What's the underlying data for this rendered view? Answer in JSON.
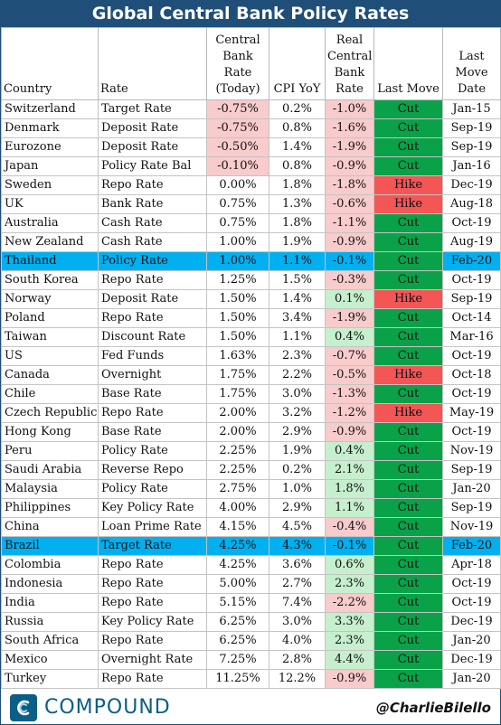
{
  "title": "Global Central Bank Policy Rates",
  "headers": {
    "country": "Country",
    "rate": "Rate",
    "cb_rate": "Central Bank Rate (Today)",
    "cpi": "CPI YoY",
    "real_rate": "Real Central Bank Rate",
    "last_move": "Last Move",
    "last_move_date": "Last Move Date"
  },
  "rows": [
    {
      "country": "Switzerland",
      "rate": "Target Rate",
      "cb": "-0.75%",
      "cpi": "0.2%",
      "real": "-1.0%",
      "move": "Cut",
      "date": "Jan-15"
    },
    {
      "country": "Denmark",
      "rate": "Deposit Rate",
      "cb": "-0.75%",
      "cpi": "0.8%",
      "real": "-1.6%",
      "move": "Cut",
      "date": "Sep-19"
    },
    {
      "country": "Eurozone",
      "rate": "Deposit Rate",
      "cb": "-0.50%",
      "cpi": "1.4%",
      "real": "-1.9%",
      "move": "Cut",
      "date": "Sep-19"
    },
    {
      "country": "Japan",
      "rate": "Policy Rate Bal",
      "cb": "-0.10%",
      "cpi": "0.8%",
      "real": "-0.9%",
      "move": "Cut",
      "date": "Jan-16"
    },
    {
      "country": "Sweden",
      "rate": "Repo Rate",
      "cb": "0.00%",
      "cpi": "1.8%",
      "real": "-1.8%",
      "move": "Hike",
      "date": "Dec-19"
    },
    {
      "country": "UK",
      "rate": "Bank Rate",
      "cb": "0.75%",
      "cpi": "1.3%",
      "real": "-0.6%",
      "move": "Hike",
      "date": "Aug-18"
    },
    {
      "country": "Australia",
      "rate": "Cash Rate",
      "cb": "0.75%",
      "cpi": "1.8%",
      "real": "-1.1%",
      "move": "Cut",
      "date": "Oct-19"
    },
    {
      "country": "New Zealand",
      "rate": "Cash Rate",
      "cb": "1.00%",
      "cpi": "1.9%",
      "real": "-0.9%",
      "move": "Cut",
      "date": "Aug-19"
    },
    {
      "country": "Thailand",
      "rate": "Policy Rate",
      "cb": "1.00%",
      "cpi": "1.1%",
      "real": "-0.1%",
      "move": "Cut",
      "date": "Feb-20",
      "highlight": true
    },
    {
      "country": "South Korea",
      "rate": "Repo Rate",
      "cb": "1.25%",
      "cpi": "1.5%",
      "real": "-0.3%",
      "move": "Cut",
      "date": "Oct-19"
    },
    {
      "country": "Norway",
      "rate": "Deposit Rate",
      "cb": "1.50%",
      "cpi": "1.4%",
      "real": "0.1%",
      "move": "Hike",
      "date": "Sep-19"
    },
    {
      "country": "Poland",
      "rate": "Repo Rate",
      "cb": "1.50%",
      "cpi": "3.4%",
      "real": "-1.9%",
      "move": "Cut",
      "date": "Oct-14"
    },
    {
      "country": "Taiwan",
      "rate": "Discount Rate",
      "cb": "1.50%",
      "cpi": "1.1%",
      "real": "0.4%",
      "move": "Cut",
      "date": "Mar-16"
    },
    {
      "country": "US",
      "rate": "Fed Funds",
      "cb": "1.63%",
      "cpi": "2.3%",
      "real": "-0.7%",
      "move": "Cut",
      "date": "Oct-19"
    },
    {
      "country": "Canada",
      "rate": "Overnight",
      "cb": "1.75%",
      "cpi": "2.2%",
      "real": "-0.5%",
      "move": "Hike",
      "date": "Oct-18"
    },
    {
      "country": "Chile",
      "rate": "Base Rate",
      "cb": "1.75%",
      "cpi": "3.0%",
      "real": "-1.3%",
      "move": "Cut",
      "date": "Oct-19"
    },
    {
      "country": "Czech Republic",
      "rate": "Repo Rate",
      "cb": "2.00%",
      "cpi": "3.2%",
      "real": "-1.2%",
      "move": "Hike",
      "date": "May-19"
    },
    {
      "country": "Hong Kong",
      "rate": "Base Rate",
      "cb": "2.00%",
      "cpi": "2.9%",
      "real": "-0.9%",
      "move": "Cut",
      "date": "Oct-19"
    },
    {
      "country": "Peru",
      "rate": "Policy Rate",
      "cb": "2.25%",
      "cpi": "1.9%",
      "real": "0.4%",
      "move": "Cut",
      "date": "Nov-19"
    },
    {
      "country": "Saudi Arabia",
      "rate": "Reverse Repo",
      "cb": "2.25%",
      "cpi": "0.2%",
      "real": "2.1%",
      "move": "Cut",
      "date": "Sep-19"
    },
    {
      "country": "Malaysia",
      "rate": "Policy Rate",
      "cb": "2.75%",
      "cpi": "1.0%",
      "real": "1.8%",
      "move": "Cut",
      "date": "Jan-20"
    },
    {
      "country": "Philippines",
      "rate": "Key Policy Rate",
      "cb": "4.00%",
      "cpi": "2.9%",
      "real": "1.1%",
      "move": "Cut",
      "date": "Sep-19"
    },
    {
      "country": "China",
      "rate": "Loan Prime Rate",
      "cb": "4.15%",
      "cpi": "4.5%",
      "real": "-0.4%",
      "move": "Cut",
      "date": "Nov-19"
    },
    {
      "country": "Brazil",
      "rate": "Target Rate",
      "cb": "4.25%",
      "cpi": "4.3%",
      "real": "-0.1%",
      "move": "Cut",
      "date": "Feb-20",
      "highlight": true
    },
    {
      "country": "Colombia",
      "rate": "Repo Rate",
      "cb": "4.25%",
      "cpi": "3.6%",
      "real": "0.6%",
      "move": "Cut",
      "date": "Apr-18"
    },
    {
      "country": "Indonesia",
      "rate": "Repo Rate",
      "cb": "5.00%",
      "cpi": "2.7%",
      "real": "2.3%",
      "move": "Cut",
      "date": "Oct-19"
    },
    {
      "country": "India",
      "rate": "Repo Rate",
      "cb": "5.15%",
      "cpi": "7.4%",
      "real": "-2.2%",
      "move": "Cut",
      "date": "Oct-19"
    },
    {
      "country": "Russia",
      "rate": "Key Policy Rate",
      "cb": "6.25%",
      "cpi": "3.0%",
      "real": "3.3%",
      "move": "Cut",
      "date": "Dec-19"
    },
    {
      "country": "South Africa",
      "rate": "Repo Rate",
      "cb": "6.25%",
      "cpi": "4.0%",
      "real": "2.3%",
      "move": "Cut",
      "date": "Jan-20"
    },
    {
      "country": "Mexico",
      "rate": "Overnight Rate",
      "cb": "7.25%",
      "cpi": "2.8%",
      "real": "4.4%",
      "move": "Cut",
      "date": "Dec-19"
    },
    {
      "country": "Turkey",
      "rate": "Repo Rate",
      "cb": "11.25%",
      "cpi": "12.2%",
      "real": "-0.9%",
      "move": "Cut",
      "date": "Jan-20"
    }
  ],
  "colors": {
    "title_bg": "#1f4e79",
    "highlight_row": "#00b0f0",
    "cut": "#0aa249",
    "hike": "#f45555",
    "negative_fill": "#f8cbcc",
    "positive_fill": "#c6efce"
  },
  "footer": {
    "brand": "COMPOUND",
    "brand_icon": "compound-logo-icon",
    "handle": "@CharlieBilello"
  }
}
